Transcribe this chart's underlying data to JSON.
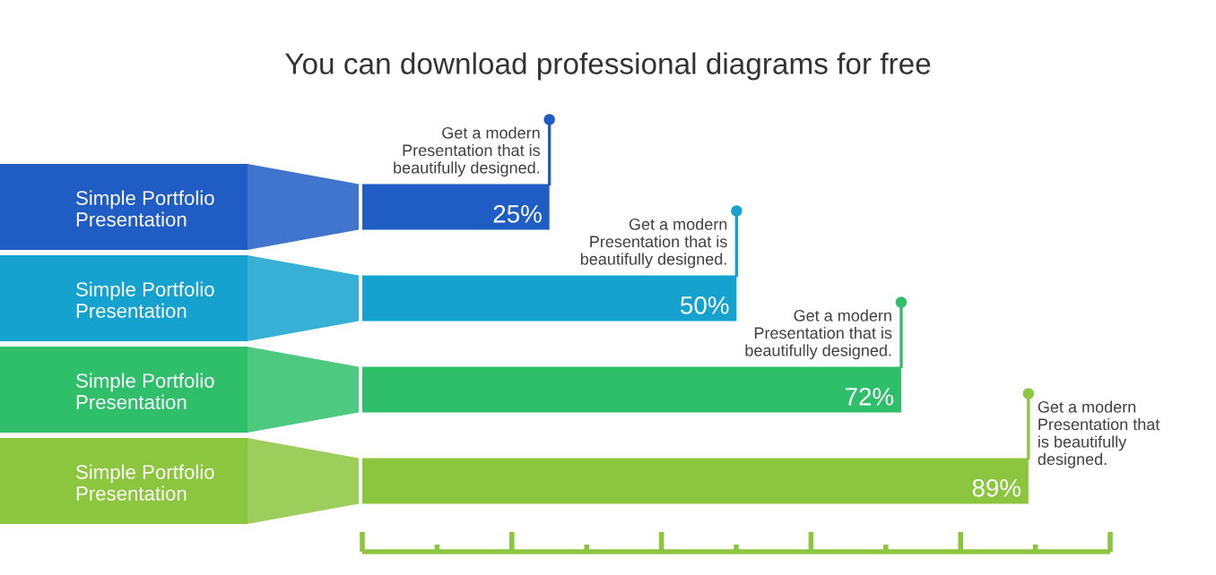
{
  "chart_data": {
    "type": "bar",
    "orientation": "horizontal",
    "subtitle": "You can download professional diagrams for free",
    "categories": [
      "Simple Portfolio\nPresentation",
      "Simple Portfolio\nPresentation",
      "Simple Portfolio\nPresentation",
      "Simple Portfolio\nPresentation"
    ],
    "values": [
      25,
      50,
      72,
      89
    ],
    "colors": [
      "#1f5cc4",
      "#15a2cf",
      "#2fbf6a",
      "#8cc63f"
    ],
    "value_labels": [
      "25%",
      "50%",
      "72%",
      "89%"
    ],
    "annotations": [
      "Get a modern\nPresentation that is\nbeautifully designed.",
      "Get a modern\nPresentation that is\nbeautifully designed.",
      "Get a modern\nPresentation that is\nbeautifully designed.",
      "Get a modern\nPresentation that\nis beautifully\ndesigned."
    ]
  }
}
